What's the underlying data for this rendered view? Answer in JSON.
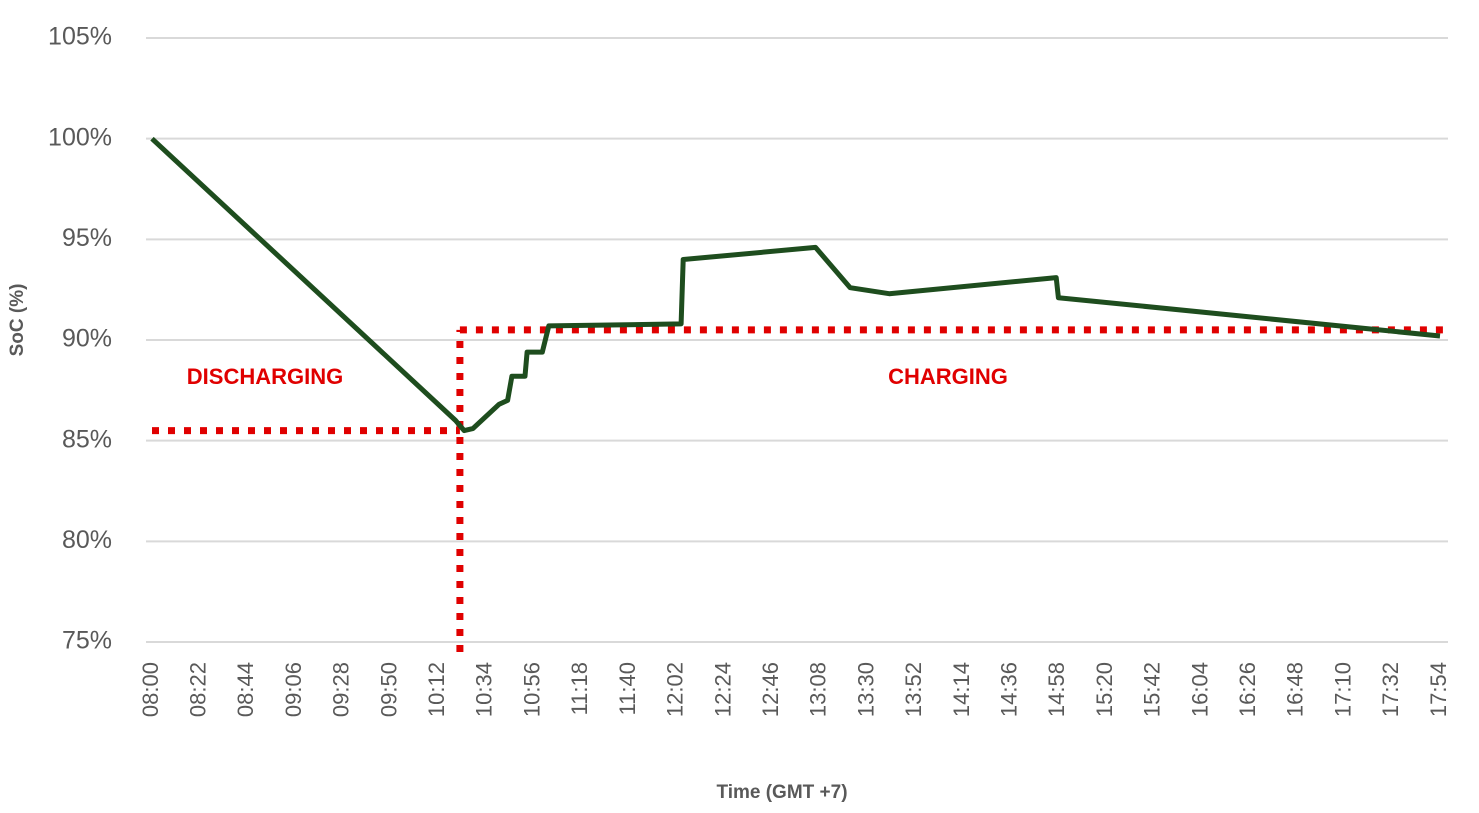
{
  "chart_data": {
    "type": "line",
    "xlabel": "Time (GMT +7)",
    "ylabel": "SoC (%)",
    "xlim": [
      "08:00",
      "17:54"
    ],
    "xticks": [
      "08:00",
      "08:22",
      "08:44",
      "09:06",
      "09:28",
      "09:50",
      "10:12",
      "10:34",
      "10:56",
      "11:18",
      "11:40",
      "12:02",
      "12:24",
      "12:46",
      "13:08",
      "13:30",
      "13:52",
      "14:14",
      "14:36",
      "14:58",
      "15:20",
      "15:42",
      "16:04",
      "16:26",
      "16:48",
      "17:10",
      "17:32",
      "17:54"
    ],
    "ylim": [
      75,
      105
    ],
    "yticks": [
      {
        "value": 75,
        "label": "75%"
      },
      {
        "value": 80,
        "label": "80%"
      },
      {
        "value": 85,
        "label": "85%"
      },
      {
        "value": 90,
        "label": "90%"
      },
      {
        "value": 95,
        "label": "95%"
      },
      {
        "value": 100,
        "label": "100%"
      },
      {
        "value": 105,
        "label": "105%"
      }
    ],
    "grid": true,
    "series": [
      {
        "color": "#1e4d1e",
        "x": [
          "08:00",
          "10:20",
          "10:24",
          "10:28",
          "10:40",
          "10:44",
          "10:46",
          "10:52",
          "10:53",
          "11:00",
          "11:03",
          "12:04",
          "12:05",
          "13:06",
          "13:22",
          "13:40",
          "14:57",
          "14:58",
          "17:54"
        ],
        "values": [
          100,
          86.0,
          85.5,
          85.6,
          86.8,
          87.0,
          88.2,
          88.2,
          89.4,
          89.4,
          90.7,
          90.8,
          94.0,
          94.6,
          92.6,
          92.3,
          93.1,
          92.1,
          90.2
        ]
      }
    ],
    "reference_lines": {
      "color": "#e00000",
      "switch_time": "10:22",
      "discharge_level": 85.5,
      "charge_level": 90.5
    },
    "annotations": [
      "DISCHARGING",
      "CHARGING"
    ]
  }
}
